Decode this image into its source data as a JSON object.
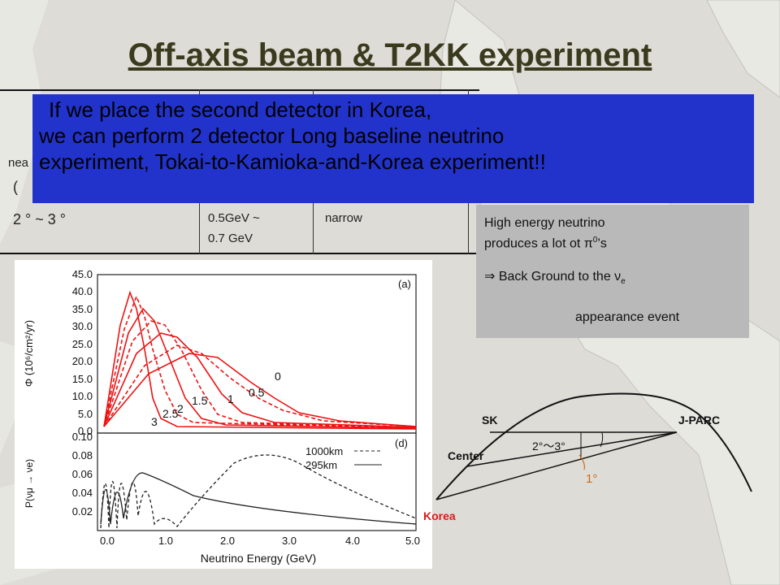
{
  "slide": {
    "title": "Off-axis beam & T2KK experiment"
  },
  "table": {
    "row1_col1_partial": "nea",
    "row1_col1_paren": "(",
    "row2": {
      "angle": "2 ° ~ 3 °",
      "energy_line1": "0.5GeV ~",
      "energy_line2": "0.7 GeV",
      "width": "narrow"
    }
  },
  "callout": {
    "line1": "If we place the second detector in Korea,",
    "line2": "we can perform 2 detector Long baseline neutrino",
    "line3": "experiment, Tokai-to-Kamioka-and-Korea experiment!!"
  },
  "note": {
    "line1": "High energy neutrino",
    "line2_pre": "produces a lot ot π",
    "line2_sup": "0",
    "line2_post": "’s",
    "line3_pre": "⇒ Back Ground to the ν",
    "line3_sub": "e",
    "line4": "appearance event"
  },
  "plot_text": {
    "panel_a": "(a)",
    "panel_d": "(d)",
    "ylabel_top": "Φ (10⁶/cm²/yr)",
    "ylabel_bottom": "P(νμ → νe)",
    "xlabel": "Neutrino Energy (GeV)",
    "top_yticks": [
      "45.0",
      "40.0",
      "35.0",
      "30.0",
      "25.0",
      "20.0",
      "15.0",
      "10.0",
      "5.0",
      "0.0"
    ],
    "bottom_yticks": [
      "0.10",
      "0.08",
      "0.06",
      "0.04",
      "0.02"
    ],
    "xticks": [
      "0.0",
      "1.0",
      "2.0",
      "3.0",
      "4.0",
      "5.0"
    ],
    "curve_labels": [
      "0",
      "0.5",
      "1",
      "1.5",
      "2",
      "2.5",
      "3"
    ],
    "legend": [
      "1000km",
      "295km"
    ]
  },
  "geometry_diagram": {
    "sk": "SK",
    "jparc": "J-PARC",
    "center": "Center",
    "angle_23": "2°〜3°",
    "angle_1": "1°",
    "korea": "Korea"
  }
}
